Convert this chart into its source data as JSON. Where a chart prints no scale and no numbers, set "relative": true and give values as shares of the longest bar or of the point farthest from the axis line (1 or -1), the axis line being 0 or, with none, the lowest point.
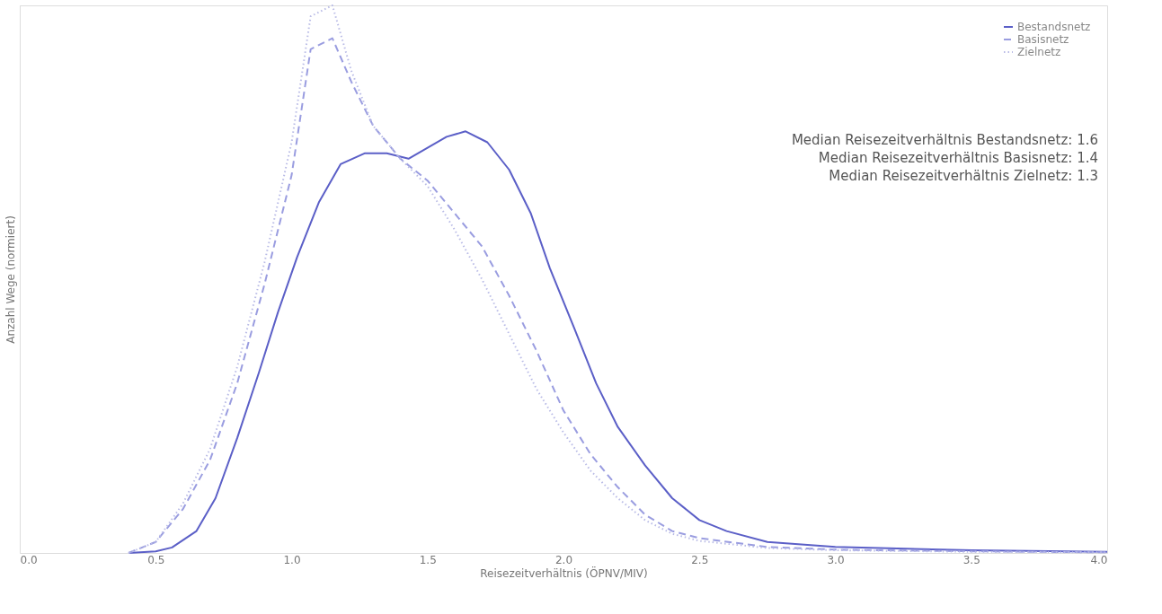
{
  "chart_data": {
    "type": "line",
    "relative": true,
    "xlabel": "Reisezeitverhältnis (ÖPNV/MIV)",
    "ylabel": "Anzahl Wege (normiert)",
    "xlim": [
      0,
      4
    ],
    "xticks": [
      {
        "value": 0,
        "label": "0.0"
      },
      0.5,
      {
        "value": 1,
        "label": "1.0"
      },
      1.5,
      {
        "value": 2,
        "label": "2.0"
      },
      2.5,
      {
        "value": 3,
        "label": "3.0"
      },
      3.5,
      {
        "value": 4,
        "label": "4.0"
      }
    ],
    "legend": "top right",
    "grid": false,
    "annotations": [
      "Median Reisezeitverhältnis Bestandsnetz: 1.6",
      "Median Reisezeitverhältnis Basisnetz: 1.4",
      "Median Reisezeitverhältnis Zielnetz: 1.3"
    ],
    "series": [
      {
        "name": "Bestandsnetz",
        "color": "#5b5fc7",
        "line_style": "solid",
        "x": [
          0.4,
          0.5,
          0.56,
          0.65,
          0.72,
          0.8,
          0.88,
          0.95,
          1.02,
          1.1,
          1.18,
          1.27,
          1.35,
          1.43,
          1.5,
          1.57,
          1.64,
          1.72,
          1.8,
          1.88,
          1.95,
          2.04,
          2.12,
          2.2,
          2.3,
          2.4,
          2.5,
          2.6,
          2.75,
          3.0,
          3.5,
          4.0
        ],
        "values": [
          0,
          0.003,
          0.01,
          0.04,
          0.1,
          0.21,
          0.33,
          0.44,
          0.54,
          0.64,
          0.71,
          0.73,
          0.73,
          0.72,
          0.74,
          0.76,
          0.77,
          0.75,
          0.7,
          0.62,
          0.52,
          0.41,
          0.31,
          0.23,
          0.16,
          0.1,
          0.06,
          0.04,
          0.02,
          0.011,
          0.005,
          0.002
        ]
      },
      {
        "name": "Basisnetz",
        "color": "#9a9de0",
        "line_style": "dashed",
        "x": [
          0.4,
          0.5,
          0.6,
          0.7,
          0.8,
          0.9,
          1.0,
          1.07,
          1.15,
          1.22,
          1.3,
          1.4,
          1.5,
          1.6,
          1.7,
          1.8,
          1.9,
          2.0,
          2.1,
          2.2,
          2.3,
          2.4,
          2.5,
          2.75,
          3.0,
          3.5,
          4.0
        ],
        "values": [
          0,
          0.02,
          0.08,
          0.17,
          0.31,
          0.49,
          0.69,
          0.92,
          0.94,
          0.86,
          0.78,
          0.72,
          0.68,
          0.62,
          0.56,
          0.47,
          0.37,
          0.26,
          0.18,
          0.12,
          0.07,
          0.04,
          0.027,
          0.011,
          0.006,
          0.003,
          0.001
        ]
      },
      {
        "name": "Zielnetz",
        "color": "#b9bbe6",
        "line_style": "dotted",
        "x": [
          0.4,
          0.5,
          0.6,
          0.7,
          0.8,
          0.9,
          1.0,
          1.07,
          1.15,
          1.22,
          1.3,
          1.4,
          1.5,
          1.6,
          1.7,
          1.8,
          1.9,
          2.0,
          2.1,
          2.2,
          2.3,
          2.4,
          2.5,
          2.75,
          3.0,
          3.5,
          4.0
        ],
        "values": [
          0,
          0.02,
          0.09,
          0.19,
          0.34,
          0.53,
          0.75,
          0.98,
          1.0,
          0.88,
          0.78,
          0.72,
          0.67,
          0.59,
          0.5,
          0.4,
          0.3,
          0.22,
          0.15,
          0.1,
          0.06,
          0.035,
          0.022,
          0.009,
          0.005,
          0.002,
          0.001
        ]
      }
    ]
  }
}
